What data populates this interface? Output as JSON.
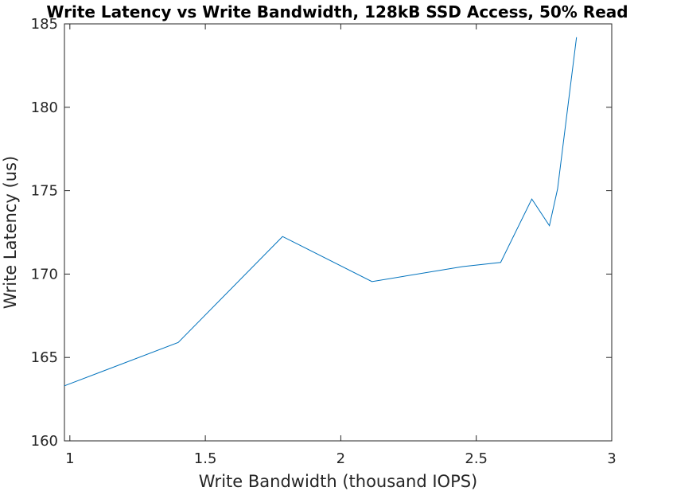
{
  "chart_data": {
    "type": "line",
    "title": "Write Latency vs Write Bandwidth, 128kB SSD Access, 50% Read",
    "xlabel": "Write Bandwidth (thousand IOPS)",
    "ylabel": "Write Latency (us)",
    "xlim": [
      0.98,
      3.0
    ],
    "ylim": [
      160,
      185
    ],
    "xticks": [
      1,
      1.5,
      2,
      2.5,
      3
    ],
    "xtick_labels": [
      "1",
      "1.5",
      "2",
      "2.5",
      "3"
    ],
    "yticks": [
      160,
      165,
      170,
      175,
      180,
      185
    ],
    "ytick_labels": [
      "160",
      "165",
      "170",
      "175",
      "180",
      "185"
    ],
    "grid": false,
    "series": [
      {
        "color": "#0072bd",
        "x": [
          0.98,
          1.4,
          1.785,
          2.115,
          2.45,
          2.59,
          2.705,
          2.77,
          2.8,
          2.87
        ],
        "y": [
          163.3,
          165.9,
          172.25,
          169.55,
          170.45,
          170.7,
          174.5,
          172.9,
          175.1,
          184.2
        ]
      }
    ]
  }
}
